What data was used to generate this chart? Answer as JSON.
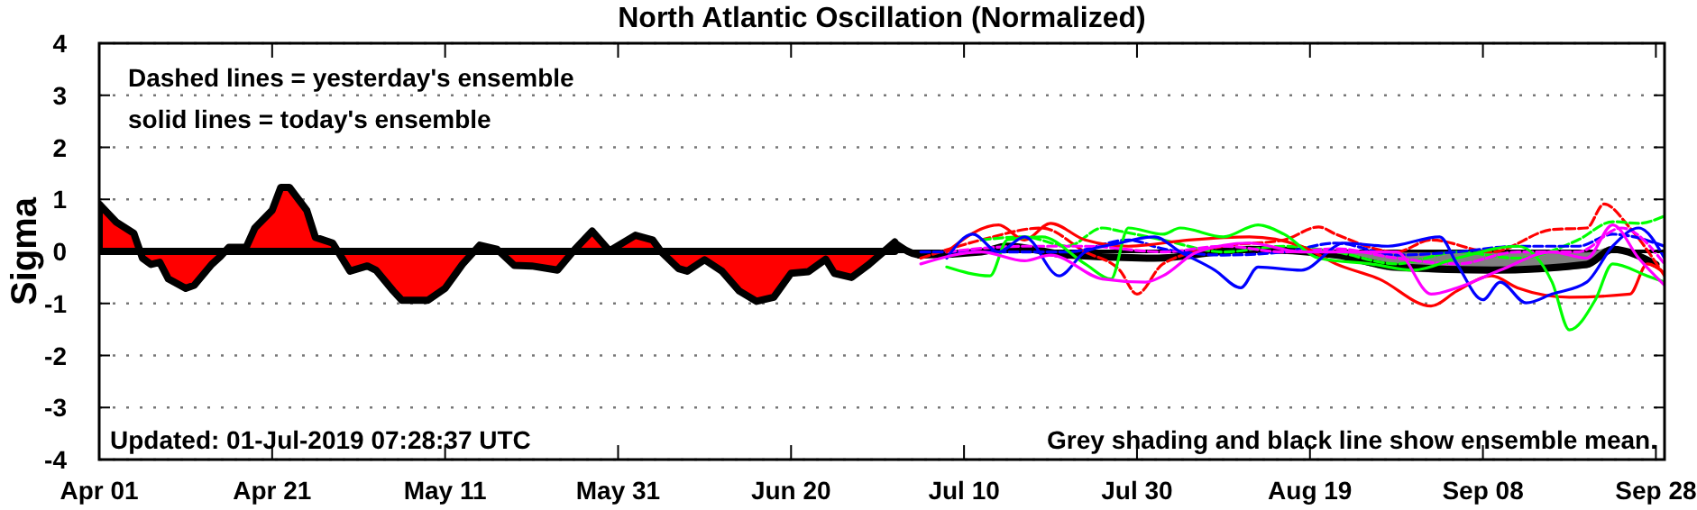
{
  "chart_data": {
    "type": "line",
    "title": "North Atlantic Oscillation (Normalized)",
    "ylabel": "Sigma",
    "xlim": [
      "2019-04-01",
      "2019-09-29"
    ],
    "xticks": [
      {
        "value": "2019-04-01",
        "label": "Apr 01"
      },
      {
        "value": "2019-04-21",
        "label": "Apr 21"
      },
      {
        "value": "2019-05-11",
        "label": "May 11"
      },
      {
        "value": "2019-05-31",
        "label": "May 31"
      },
      {
        "value": "2019-06-20",
        "label": "Jun 20"
      },
      {
        "value": "2019-07-10",
        "label": "Jul 10"
      },
      {
        "value": "2019-07-30",
        "label": "Jul 30"
      },
      {
        "value": "2019-08-19",
        "label": "Aug 19"
      },
      {
        "value": "2019-09-08",
        "label": "Sep 08"
      },
      {
        "value": "2019-09-28",
        "label": "Sep 28"
      }
    ],
    "ylim": [
      -4,
      4
    ],
    "yticks": [
      -4,
      -3,
      -2,
      -1,
      0,
      1,
      2,
      3,
      4
    ],
    "grid": "y",
    "ref_lines": [
      {
        "axis": "y",
        "value": 0,
        "color": "#000000"
      }
    ],
    "annotations": [
      "Dashed lines = yesterday's ensemble",
      "solid lines = today's ensemble",
      "Updated: 01-Jul-2019 07:28:37 UTC",
      "Grey shading and black line show ensemble mean."
    ],
    "series": [
      {
        "type": "area",
        "color": "#ff0000",
        "x": [
          "2019-04-01",
          "2019-04-03",
          "2019-04-05",
          "2019-04-06",
          "2019-04-07",
          "2019-04-08",
          "2019-04-09",
          "2019-04-11",
          "2019-04-12",
          "2019-04-14",
          "2019-04-15",
          "2019-04-16",
          "2019-04-18",
          "2019-04-19",
          "2019-04-21",
          "2019-04-22",
          "2019-04-23",
          "2019-04-25",
          "2019-04-26",
          "2019-04-28",
          "2019-04-30",
          "2019-05-02",
          "2019-05-03",
          "2019-05-05",
          "2019-05-06",
          "2019-05-09",
          "2019-05-11",
          "2019-05-13",
          "2019-05-15",
          "2019-05-17",
          "2019-05-19",
          "2019-05-21",
          "2019-05-24",
          "2019-05-26",
          "2019-05-28",
          "2019-05-30",
          "2019-06-02",
          "2019-06-04",
          "2019-06-05",
          "2019-06-07",
          "2019-06-08",
          "2019-06-10",
          "2019-06-12",
          "2019-06-14",
          "2019-06-16",
          "2019-06-18",
          "2019-06-20",
          "2019-06-22",
          "2019-06-24",
          "2019-06-25",
          "2019-06-27",
          "2019-06-29",
          "2019-07-02"
        ],
        "values": [
          0.91,
          0.56,
          0.35,
          -0.13,
          -0.25,
          -0.21,
          -0.53,
          -0.71,
          -0.65,
          -0.25,
          -0.1,
          0.08,
          0.08,
          0.45,
          0.79,
          1.23,
          1.23,
          0.79,
          0.27,
          0.16,
          -0.38,
          -0.28,
          -0.36,
          -0.76,
          -0.94,
          -0.94,
          -0.71,
          -0.25,
          0.12,
          0.04,
          -0.27,
          -0.28,
          -0.36,
          0.04,
          0.39,
          0.01,
          0.31,
          0.22,
          -0.01,
          -0.33,
          -0.38,
          -0.16,
          -0.38,
          -0.76,
          -0.96,
          -0.88,
          -0.42,
          -0.39,
          -0.15,
          -0.42,
          -0.5,
          -0.25,
          0.18
        ]
      },
      {
        "color": "#ff0000",
        "line_style": "dashed",
        "x": [
          "2019-07-05",
          "2019-07-12",
          "2019-07-19",
          "2019-07-24",
          "2019-07-28",
          "2019-07-30",
          "2019-08-02",
          "2019-08-09",
          "2019-08-16",
          "2019-08-20",
          "2019-08-22",
          "2019-08-29",
          "2019-09-02",
          "2019-09-09",
          "2019-09-16",
          "2019-09-20",
          "2019-09-22",
          "2019-09-25",
          "2019-09-29"
        ],
        "values": [
          -0.13,
          0.22,
          0.45,
          -0.01,
          -0.36,
          -0.82,
          -0.24,
          0.1,
          0.22,
          0.47,
          0.33,
          -0.01,
          0.22,
          -0.01,
          0.42,
          0.45,
          0.91,
          0.45,
          -0.47
        ]
      },
      {
        "color": "#00ff00",
        "line_style": "dashed",
        "x": [
          "2019-07-12",
          "2019-07-17",
          "2019-07-22",
          "2019-07-26",
          "2019-07-28",
          "2019-08-02",
          "2019-08-09",
          "2019-08-16",
          "2019-08-22",
          "2019-08-29",
          "2019-09-05",
          "2019-09-12",
          "2019-09-19",
          "2019-09-23",
          "2019-09-26",
          "2019-09-29"
        ],
        "values": [
          0.22,
          0.28,
          0.1,
          0.45,
          0.39,
          0.22,
          -0.01,
          0.1,
          -0.01,
          -0.24,
          -0.01,
          -0.13,
          0.22,
          0.57,
          0.54,
          0.68
        ]
      },
      {
        "color": "#0000ff",
        "line_style": "dashed",
        "x": [
          "2019-07-05",
          "2019-07-15",
          "2019-07-22",
          "2019-07-29",
          "2019-08-02",
          "2019-08-09",
          "2019-08-16",
          "2019-08-22",
          "2019-08-29",
          "2019-09-05",
          "2019-09-12",
          "2019-09-19",
          "2019-09-23",
          "2019-09-29"
        ],
        "values": [
          -0.01,
          -0.01,
          -0.01,
          0.22,
          0.05,
          -0.07,
          -0.01,
          0.16,
          -0.07,
          -0.01,
          0.1,
          0.1,
          0.33,
          0.1
        ]
      },
      {
        "color": "#ff00ff",
        "line_style": "dashed",
        "x": [
          "2019-07-08",
          "2019-07-17",
          "2019-07-24",
          "2019-08-02",
          "2019-08-09",
          "2019-08-16",
          "2019-08-22",
          "2019-08-29",
          "2019-09-05",
          "2019-09-12",
          "2019-09-19",
          "2019-09-24",
          "2019-09-29"
        ],
        "values": [
          -0.01,
          0.1,
          0.1,
          -0.01,
          0.1,
          -0.01,
          0.05,
          -0.13,
          -0.24,
          -0.01,
          -0.01,
          0.45,
          -0.24
        ]
      },
      {
        "color": "#ff0000",
        "line_style": "solid",
        "x": [
          "2019-07-08",
          "2019-07-14",
          "2019-07-17",
          "2019-07-20",
          "2019-07-24",
          "2019-07-29",
          "2019-08-05",
          "2019-08-12",
          "2019-08-18",
          "2019-08-22",
          "2019-08-27",
          "2019-09-02",
          "2019-09-05",
          "2019-09-09",
          "2019-09-12",
          "2019-09-18",
          "2019-09-25",
          "2019-09-27",
          "2019-09-29"
        ],
        "values": [
          -0.01,
          0.51,
          0.22,
          0.54,
          0.22,
          0.1,
          0.22,
          0.28,
          0.1,
          -0.24,
          -0.53,
          -1.05,
          -0.76,
          -0.47,
          -0.7,
          -0.88,
          -0.82,
          -0.24,
          -0.42
        ]
      },
      {
        "color": "#00ff00",
        "line_style": "solid",
        "x": [
          "2019-07-08",
          "2019-07-13",
          "2019-07-15",
          "2019-07-19",
          "2019-07-24",
          "2019-07-27",
          "2019-07-29",
          "2019-08-02",
          "2019-08-04",
          "2019-08-09",
          "2019-08-13",
          "2019-08-16",
          "2019-08-20",
          "2019-08-26",
          "2019-08-31",
          "2019-09-05",
          "2019-09-12",
          "2019-09-16",
          "2019-09-18",
          "2019-09-21",
          "2019-09-23",
          "2019-09-27",
          "2019-09-29"
        ],
        "values": [
          -0.3,
          -0.47,
          0.22,
          0.28,
          -0.24,
          -0.53,
          0.45,
          0.33,
          0.45,
          0.28,
          0.51,
          0.33,
          -0.13,
          -0.24,
          -0.36,
          -0.13,
          0.1,
          -0.59,
          -1.51,
          -0.93,
          -0.24,
          -0.47,
          -0.59
        ]
      },
      {
        "color": "#0000ff",
        "line_style": "solid",
        "x": [
          "2019-07-08",
          "2019-07-11",
          "2019-07-14",
          "2019-07-17",
          "2019-07-21",
          "2019-07-24",
          "2019-07-28",
          "2019-08-01",
          "2019-08-04",
          "2019-08-08",
          "2019-08-11",
          "2019-08-13",
          "2019-08-18",
          "2019-08-23",
          "2019-08-28",
          "2019-09-03",
          "2019-09-05",
          "2019-09-08",
          "2019-09-10",
          "2019-09-13",
          "2019-09-16",
          "2019-09-20",
          "2019-09-23",
          "2019-09-26",
          "2019-09-29"
        ],
        "values": [
          -0.13,
          0.33,
          -0.01,
          0.28,
          -0.47,
          -0.01,
          0.16,
          0.28,
          -0.01,
          -0.36,
          -0.7,
          -0.3,
          -0.36,
          0.16,
          0.1,
          0.28,
          -0.24,
          -0.93,
          -0.59,
          -0.99,
          -0.82,
          -0.59,
          0.1,
          0.45,
          -0.13
        ]
      },
      {
        "color": "#ff00ff",
        "line_style": "solid",
        "x": [
          "2019-07-05",
          "2019-07-12",
          "2019-07-17",
          "2019-07-20",
          "2019-07-26",
          "2019-07-31",
          "2019-08-02",
          "2019-08-06",
          "2019-08-12",
          "2019-08-18",
          "2019-08-22",
          "2019-08-29",
          "2019-09-02",
          "2019-09-05",
          "2019-09-10",
          "2019-09-16",
          "2019-09-20",
          "2019-09-23",
          "2019-09-26",
          "2019-09-29"
        ],
        "values": [
          -0.24,
          -0.01,
          -0.18,
          -0.07,
          -0.53,
          -0.59,
          -0.47,
          -0.01,
          0.16,
          -0.01,
          -0.01,
          -0.01,
          -0.82,
          -0.7,
          -0.36,
          -0.01,
          -0.13,
          0.51,
          -0.13,
          -0.65
        ]
      },
      {
        "color": "#000000",
        "line_style": "solid",
        "x": [
          "2019-07-02",
          "2019-07-05",
          "2019-07-12",
          "2019-07-15",
          "2019-07-22",
          "2019-08-01",
          "2019-08-12",
          "2019-08-22",
          "2019-08-29",
          "2019-09-09",
          "2019-09-20",
          "2019-09-23",
          "2019-09-28"
        ],
        "values": [
          0.16,
          -0.07,
          -0.01,
          0.1,
          -0.07,
          -0.13,
          0.04,
          -0.07,
          -0.3,
          -0.36,
          -0.25,
          0.04,
          -0.25
        ],
        "lower": [
          0.11,
          -0.12,
          -0.06,
          0.05,
          -0.12,
          -0.18,
          -0.01,
          -0.12,
          -0.38,
          -0.42,
          -0.32,
          -0.01,
          -0.3
        ],
        "upper": [
          0.21,
          -0.02,
          0.04,
          0.15,
          -0.02,
          -0.08,
          0.09,
          -0.02,
          -0.02,
          -0.02,
          -0.02,
          0.09,
          -0.2
        ]
      }
    ]
  }
}
